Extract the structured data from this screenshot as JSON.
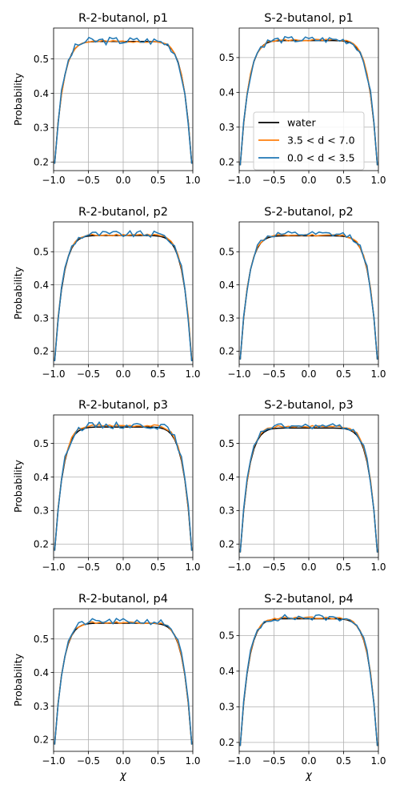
{
  "figure": {
    "legend": [
      {
        "label": "water",
        "color": "#000000"
      },
      {
        "label": "3.5 < d < 7.0",
        "color": "#ff7f0e"
      },
      {
        "label": "0.0 < d < 3.5",
        "color": "#1f77b4"
      }
    ]
  },
  "chart_data": [
    {
      "type": "line",
      "title": "R-2-butanol, p1",
      "xlabel": "",
      "ylabel": "Probability",
      "xlim": [
        -1,
        1
      ],
      "ylim": [
        0.175,
        0.59
      ],
      "yticks": [
        0.2,
        0.3,
        0.4,
        0.5
      ],
      "xticks": [
        -1.0,
        -0.5,
        0.0,
        0.5,
        1.0
      ],
      "grid": true,
      "series": [
        {
          "name": "water",
          "color": "#000000",
          "amp": 0.551,
          "end": 0.195,
          "noise": 0.0,
          "seed": 1
        },
        {
          "name": "3.5 < d < 7.0",
          "color": "#ff7f0e",
          "amp": 0.551,
          "end": 0.195,
          "noise": 0.003,
          "seed": 2
        },
        {
          "name": "0.0 < d < 3.5",
          "color": "#1f77b4",
          "amp": 0.553,
          "end": 0.195,
          "noise": 0.012,
          "seed": 3
        }
      ]
    },
    {
      "type": "line",
      "title": "S-2-butanol, p1",
      "xlabel": "",
      "ylabel": "",
      "xlim": [
        -1,
        1
      ],
      "ylim": [
        0.175,
        0.585
      ],
      "yticks": [
        0.2,
        0.3,
        0.4,
        0.5
      ],
      "xticks": [
        -1.0,
        -0.5,
        0.0,
        0.5,
        1.0
      ],
      "grid": true,
      "legend": "center-right",
      "series": [
        {
          "name": "water",
          "color": "#000000",
          "amp": 0.549,
          "end": 0.19,
          "noise": 0.0,
          "seed": 4
        },
        {
          "name": "3.5 < d < 7.0",
          "color": "#ff7f0e",
          "amp": 0.55,
          "end": 0.19,
          "noise": 0.003,
          "seed": 5
        },
        {
          "name": "0.0 < d < 3.5",
          "color": "#1f77b4",
          "amp": 0.551,
          "end": 0.19,
          "noise": 0.01,
          "seed": 6
        }
      ]
    },
    {
      "type": "line",
      "title": "R-2-butanol, p2",
      "xlabel": "",
      "ylabel": "Probability",
      "xlim": [
        -1,
        1
      ],
      "ylim": [
        0.16,
        0.59
      ],
      "yticks": [
        0.2,
        0.3,
        0.4,
        0.5
      ],
      "xticks": [
        -1.0,
        -0.5,
        0.0,
        0.5,
        1.0
      ],
      "grid": true,
      "series": [
        {
          "name": "water",
          "color": "#000000",
          "amp": 0.549,
          "end": 0.17,
          "noise": 0.0,
          "seed": 7
        },
        {
          "name": "3.5 < d < 7.0",
          "color": "#ff7f0e",
          "amp": 0.551,
          "end": 0.175,
          "noise": 0.003,
          "seed": 8
        },
        {
          "name": "0.0 < d < 3.5",
          "color": "#1f77b4",
          "amp": 0.553,
          "end": 0.17,
          "noise": 0.01,
          "seed": 9
        }
      ]
    },
    {
      "type": "line",
      "title": "S-2-butanol, p2",
      "xlabel": "",
      "ylabel": "",
      "xlim": [
        -1,
        1
      ],
      "ylim": [
        0.16,
        0.59
      ],
      "yticks": [
        0.2,
        0.3,
        0.4,
        0.5
      ],
      "xticks": [
        -1.0,
        -0.5,
        0.0,
        0.5,
        1.0
      ],
      "grid": true,
      "series": [
        {
          "name": "water",
          "color": "#000000",
          "amp": 0.548,
          "end": 0.175,
          "noise": 0.0,
          "seed": 10
        },
        {
          "name": "3.5 < d < 7.0",
          "color": "#ff7f0e",
          "amp": 0.55,
          "end": 0.175,
          "noise": 0.003,
          "seed": 11
        },
        {
          "name": "0.0 < d < 3.5",
          "color": "#1f77b4",
          "amp": 0.552,
          "end": 0.175,
          "noise": 0.009,
          "seed": 12
        }
      ]
    },
    {
      "type": "line",
      "title": "R-2-butanol, p3",
      "xlabel": "",
      "ylabel": "Probability",
      "xlim": [
        -1,
        1
      ],
      "ylim": [
        0.16,
        0.585
      ],
      "yticks": [
        0.2,
        0.3,
        0.4,
        0.5
      ],
      "xticks": [
        -1.0,
        -0.5,
        0.0,
        0.5,
        1.0
      ],
      "grid": true,
      "series": [
        {
          "name": "water",
          "color": "#000000",
          "amp": 0.549,
          "end": 0.18,
          "noise": 0.0,
          "seed": 13
        },
        {
          "name": "3.5 < d < 7.0",
          "color": "#ff7f0e",
          "amp": 0.553,
          "end": 0.18,
          "noise": 0.003,
          "seed": 14
        },
        {
          "name": "0.0 < d < 3.5",
          "color": "#1f77b4",
          "amp": 0.554,
          "end": 0.18,
          "noise": 0.01,
          "seed": 15
        }
      ]
    },
    {
      "type": "line",
      "title": "S-2-butanol, p3",
      "xlabel": "",
      "ylabel": "",
      "xlim": [
        -1,
        1
      ],
      "ylim": [
        0.16,
        0.585
      ],
      "yticks": [
        0.2,
        0.3,
        0.4,
        0.5
      ],
      "xticks": [
        -1.0,
        -0.5,
        0.0,
        0.5,
        1.0
      ],
      "grid": true,
      "series": [
        {
          "name": "water",
          "color": "#000000",
          "amp": 0.546,
          "end": 0.175,
          "noise": 0.0,
          "seed": 16
        },
        {
          "name": "3.5 < d < 7.0",
          "color": "#ff7f0e",
          "amp": 0.551,
          "end": 0.175,
          "noise": 0.003,
          "seed": 17
        },
        {
          "name": "0.0 < d < 3.5",
          "color": "#1f77b4",
          "amp": 0.551,
          "end": 0.175,
          "noise": 0.008,
          "seed": 18
        }
      ]
    },
    {
      "type": "line",
      "title": "R-2-butanol, p4",
      "xlabel": "χ",
      "ylabel": "Probability",
      "xlim": [
        -1,
        1
      ],
      "ylim": [
        0.165,
        0.59
      ],
      "yticks": [
        0.2,
        0.3,
        0.4,
        0.5
      ],
      "xticks": [
        -1.0,
        -0.5,
        0.0,
        0.5,
        1.0
      ],
      "grid": true,
      "series": [
        {
          "name": "water",
          "color": "#000000",
          "amp": 0.547,
          "end": 0.185,
          "noise": 0.0,
          "seed": 19
        },
        {
          "name": "3.5 < d < 7.0",
          "color": "#ff7f0e",
          "amp": 0.549,
          "end": 0.185,
          "noise": 0.003,
          "seed": 20
        },
        {
          "name": "0.0 < d < 3.5",
          "color": "#1f77b4",
          "amp": 0.552,
          "end": 0.185,
          "noise": 0.009,
          "seed": 21
        }
      ]
    },
    {
      "type": "line",
      "title": "S-2-butanol, p4",
      "xlabel": "χ",
      "ylabel": "",
      "xlim": [
        -1,
        1
      ],
      "ylim": [
        0.175,
        0.575
      ],
      "yticks": [
        0.2,
        0.3,
        0.4,
        0.5
      ],
      "xticks": [
        -1.0,
        -0.5,
        0.0,
        0.5,
        1.0
      ],
      "grid": true,
      "series": [
        {
          "name": "water",
          "color": "#000000",
          "amp": 0.547,
          "end": 0.19,
          "noise": 0.0,
          "seed": 22
        },
        {
          "name": "3.5 < d < 7.0",
          "color": "#ff7f0e",
          "amp": 0.549,
          "end": 0.19,
          "noise": 0.003,
          "seed": 23
        },
        {
          "name": "0.0 < d < 3.5",
          "color": "#1f77b4",
          "amp": 0.55,
          "end": 0.19,
          "noise": 0.009,
          "seed": 24
        }
      ]
    }
  ]
}
